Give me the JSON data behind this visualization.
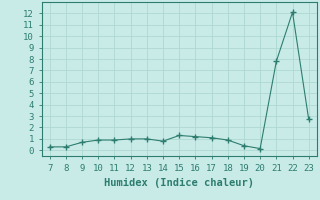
{
  "x": [
    7,
    8,
    9,
    10,
    11,
    12,
    13,
    14,
    15,
    16,
    17,
    18,
    19,
    20,
    21,
    22,
    23
  ],
  "y": [
    0.3,
    0.3,
    0.7,
    0.9,
    0.9,
    1.0,
    1.0,
    0.8,
    1.3,
    1.2,
    1.1,
    0.9,
    0.4,
    0.15,
    7.8,
    12.1,
    2.7
  ],
  "xlabel": "Humidex (Indice chaleur)",
  "ylabel_ticks": [
    0,
    1,
    2,
    3,
    4,
    5,
    6,
    7,
    8,
    9,
    10,
    11,
    12
  ],
  "xlim": [
    6.5,
    23.5
  ],
  "ylim": [
    -0.5,
    13.0
  ],
  "line_color": "#2d7d6e",
  "marker": "+",
  "marker_size": 4,
  "bg_color": "#c8ebe8",
  "grid_color": "#b0d8d3",
  "tick_fontsize": 6.5,
  "xlabel_fontsize": 7.5
}
